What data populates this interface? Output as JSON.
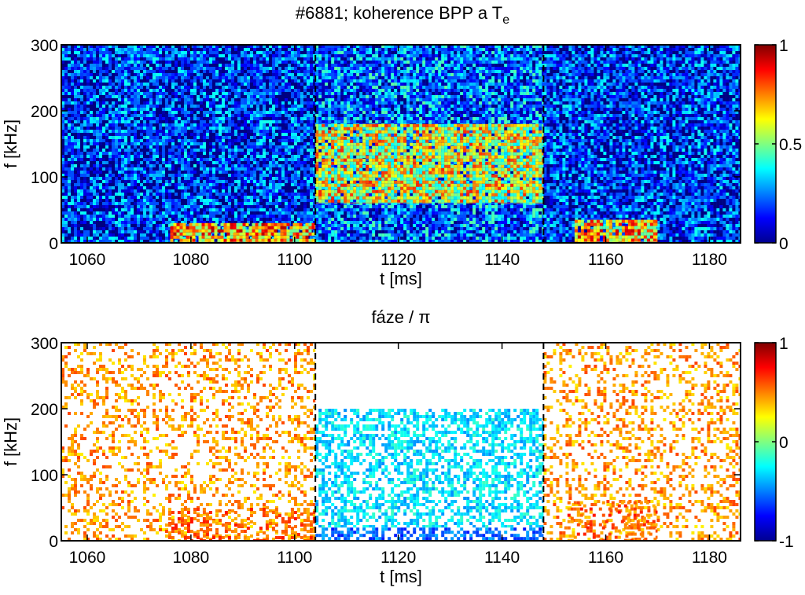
{
  "chart_data": [
    {
      "type": "heatmap",
      "title": "#6881; koherence BPP a T",
      "title_subscript": "e",
      "xlabel": "t [ms]",
      "ylabel": "f [kHz]",
      "xlim": [
        1055,
        1186
      ],
      "ylim": [
        0,
        300
      ],
      "xticks": [
        1060,
        1080,
        1100,
        1120,
        1140,
        1160,
        1180
      ],
      "yticks": [
        0,
        100,
        200,
        300
      ],
      "colorbar": {
        "min": 0,
        "max": 1,
        "ticks": [
          "0",
          "0.5",
          "1"
        ],
        "colormap": "jet"
      },
      "vertical_dashed_lines": [
        1104,
        1148
      ],
      "regions": [
        {
          "x": [
            1055,
            1104
          ],
          "y": [
            0,
            300
          ],
          "level": 0.15
        },
        {
          "x": [
            1104,
            1148
          ],
          "y": [
            0,
            300
          ],
          "level": 0.22
        },
        {
          "x": [
            1104,
            1148
          ],
          "y": [
            60,
            180
          ],
          "level": 0.6
        },
        {
          "x": [
            1076,
            1104
          ],
          "y": [
            0,
            30
          ],
          "level": 0.7
        },
        {
          "x": [
            1148,
            1186
          ],
          "y": [
            0,
            300
          ],
          "level": 0.15
        },
        {
          "x": [
            1154,
            1170
          ],
          "y": [
            0,
            35
          ],
          "level": 0.68
        }
      ]
    },
    {
      "type": "heatmap",
      "title": "fáze / π",
      "xlabel": "t [ms]",
      "ylabel": "f [kHz]",
      "xlim": [
        1055,
        1186
      ],
      "ylim": [
        0,
        300
      ],
      "xticks": [
        1060,
        1080,
        1100,
        1120,
        1140,
        1160,
        1180
      ],
      "yticks": [
        0,
        100,
        200,
        300
      ],
      "colorbar": {
        "min": -1,
        "max": 1,
        "ticks": [
          "-1",
          "0",
          "1"
        ],
        "colormap": "jet"
      },
      "vertical_dashed_lines": [
        1104,
        1148
      ],
      "regions": [
        {
          "x": [
            1055,
            1104
          ],
          "y": [
            0,
            300
          ],
          "level": 0.45
        },
        {
          "x": [
            1075,
            1104
          ],
          "y": [
            0,
            50
          ],
          "level": 0.55
        },
        {
          "x": [
            1104,
            1148
          ],
          "y": [
            20,
            200
          ],
          "level": -0.3
        },
        {
          "x": [
            1104,
            1148
          ],
          "y": [
            0,
            20
          ],
          "level": -0.55
        },
        {
          "x": [
            1148,
            1186
          ],
          "y": [
            0,
            300
          ],
          "level": 0.45
        },
        {
          "x": [
            1152,
            1170
          ],
          "y": [
            0,
            60
          ],
          "level": 0.55
        }
      ],
      "blank_color": "#ffffff"
    }
  ]
}
